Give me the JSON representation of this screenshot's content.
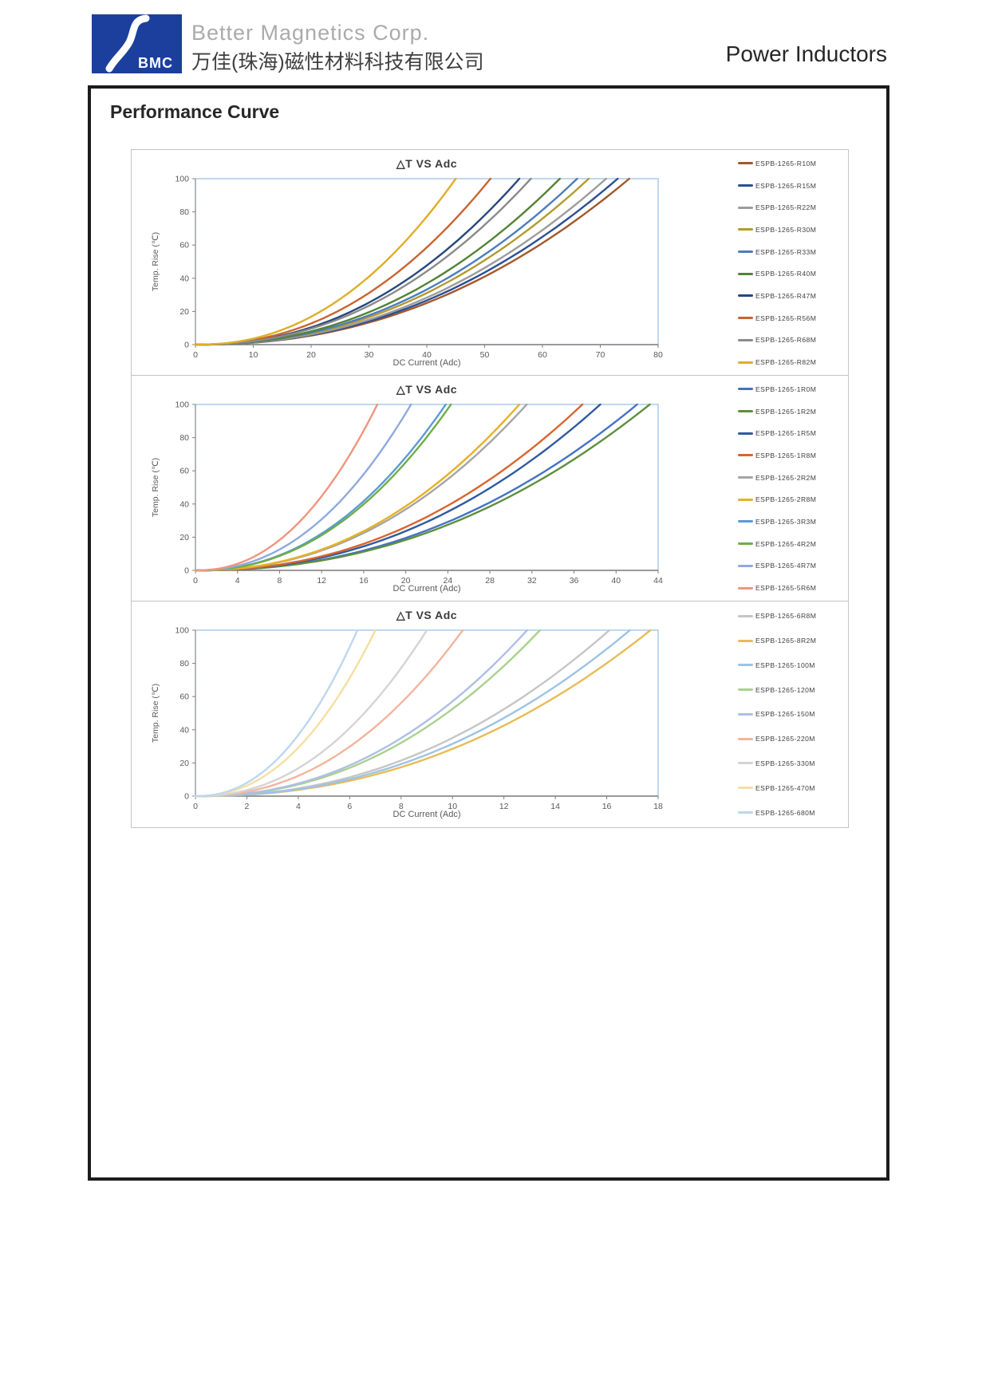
{
  "header": {
    "logo_text": "BMC",
    "brand_en": "Better Magnetics Corp.",
    "brand_cn": "万佳(珠海)磁性材料科技有限公司",
    "product": "Power Inductors",
    "logo_color": "#1C3F9E"
  },
  "page": {
    "section_title": "Performance Curve"
  },
  "style_colors": {
    "plot_border": "#9DC3E6",
    "axis_line": "#7F7F7F",
    "tick_text": "#595959",
    "title_text": "#3B3B3B"
  },
  "chart_data": [
    {
      "type": "line",
      "title": "△T VS Adc",
      "xlabel": "DC Current (Adc)",
      "ylabel": "Temp. Rise (℃)",
      "xlim": [
        0,
        80
      ],
      "xticks": [
        0,
        10,
        20,
        30,
        40,
        50,
        60,
        70,
        80
      ],
      "ylim": [
        0,
        100
      ],
      "yticks": [
        0,
        20,
        40,
        60,
        80,
        100
      ],
      "grid": false,
      "legend_position": "right",
      "curve_exponent": 2.2,
      "series_note": "each curve is temp-rise vs DC current; i_at_dt100 = current (Adc) where ΔT reaches 100°C",
      "series": [
        {
          "name": "ESPB-1265-R10M",
          "color": "#A2582B",
          "i_at_dt100": 75
        },
        {
          "name": "ESPB-1265-R15M",
          "color": "#2B4F93",
          "i_at_dt100": 73
        },
        {
          "name": "ESPB-1265-R22M",
          "color": "#9C9C9C",
          "i_at_dt100": 71
        },
        {
          "name": "ESPB-1265-R30M",
          "color": "#B39A2E",
          "i_at_dt100": 68
        },
        {
          "name": "ESPB-1265-R33M",
          "color": "#4C7CBE",
          "i_at_dt100": 66
        },
        {
          "name": "ESPB-1265-R40M",
          "color": "#548235",
          "i_at_dt100": 63
        },
        {
          "name": "ESPB-1265-R47M",
          "color": "#27477E",
          "i_at_dt100": 56
        },
        {
          "name": "ESPB-1265-R56M",
          "color": "#C8642E",
          "i_at_dt100": 51
        },
        {
          "name": "ESPB-1265-R68M",
          "color": "#8A8A8A",
          "i_at_dt100": 58
        },
        {
          "name": "ESPB-1265-R82M",
          "color": "#DFAE28",
          "i_at_dt100": 45
        }
      ]
    },
    {
      "type": "line",
      "title": "△T VS Adc",
      "xlabel": "DC Current (Adc)",
      "ylabel": "Temp. Rise (℃)",
      "xlim": [
        0,
        44
      ],
      "xticks": [
        0,
        4,
        8,
        12,
        16,
        20,
        24,
        28,
        32,
        36,
        40,
        44
      ],
      "ylim": [
        0,
        100
      ],
      "yticks": [
        0,
        20,
        40,
        60,
        80,
        100
      ],
      "grid": false,
      "legend_position": "right",
      "curve_exponent": 2.2,
      "series": [
        {
          "name": "ESPB-1265-1R0M",
          "color": "#4472C4",
          "i_at_dt100": 42
        },
        {
          "name": "ESPB-1265-1R2M",
          "color": "#5E8F3C",
          "i_at_dt100": 43.2
        },
        {
          "name": "ESPB-1265-1R5M",
          "color": "#2E5B9F",
          "i_at_dt100": 38.5
        },
        {
          "name": "ESPB-1265-1R8M",
          "color": "#D9652E",
          "i_at_dt100": 36.8
        },
        {
          "name": "ESPB-1265-2R2M",
          "color": "#A5A5A5",
          "i_at_dt100": 31.5
        },
        {
          "name": "ESPB-1265-2R8M",
          "color": "#E6B125",
          "i_at_dt100": 30.8
        },
        {
          "name": "ESPB-1265-3R3M",
          "color": "#5B9BD5",
          "i_at_dt100": 23.8
        },
        {
          "name": "ESPB-1265-4R2M",
          "color": "#70AD47",
          "i_at_dt100": 24.3
        },
        {
          "name": "ESPB-1265-4R7M",
          "color": "#8FAADC",
          "i_at_dt100": 20.5
        },
        {
          "name": "ESPB-1265-5R6M",
          "color": "#F0957E",
          "i_at_dt100": 17.3
        }
      ]
    },
    {
      "type": "line",
      "title": "△T VS Adc",
      "xlabel": "DC Current (Adc)",
      "ylabel": "Temp. Rise (℃)",
      "xlim": [
        0,
        18
      ],
      "xticks": [
        0,
        2,
        4,
        6,
        8,
        10,
        12,
        14,
        16,
        18
      ],
      "ylim": [
        0,
        100
      ],
      "yticks": [
        0,
        20,
        40,
        60,
        80,
        100
      ],
      "grid": false,
      "legend_position": "right",
      "curve_exponent": 2.2,
      "series": [
        {
          "name": "ESPB-1265-6R8M",
          "color": "#C6C6C6",
          "i_at_dt100": 16.1
        },
        {
          "name": "ESPB-1265-8R2M",
          "color": "#E8BC55",
          "i_at_dt100": 17.7
        },
        {
          "name": "ESPB-1265-100M",
          "color": "#9DC3E6",
          "i_at_dt100": 16.9
        },
        {
          "name": "ESPB-1265-120M",
          "color": "#A9D18E",
          "i_at_dt100": 13.4
        },
        {
          "name": "ESPB-1265-150M",
          "color": "#AEBFE3",
          "i_at_dt100": 12.9
        },
        {
          "name": "ESPB-1265-220M",
          "color": "#F2B59C",
          "i_at_dt100": 10.4
        },
        {
          "name": "ESPB-1265-330M",
          "color": "#D4D4D4",
          "i_at_dt100": 9.0
        },
        {
          "name": "ESPB-1265-470M",
          "color": "#F5DFA0",
          "i_at_dt100": 7.0
        },
        {
          "name": "ESPB-1265-680M",
          "color": "#BDD7EE",
          "i_at_dt100": 6.3
        }
      ]
    }
  ]
}
